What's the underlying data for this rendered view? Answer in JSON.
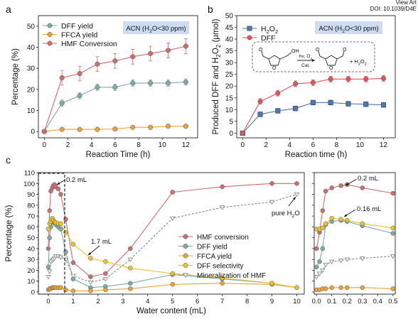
{
  "header": {
    "line1": "View Art",
    "line2": "DOI: 10.1039/D4E"
  },
  "chart_data": [
    {
      "panel": "a",
      "type": "line",
      "xlabel": "Reaction Time (h)",
      "ylabel": "Percentage (%)",
      "xlim": [
        -0.5,
        13
      ],
      "ylim": [
        -3,
        55
      ],
      "xticks": [
        0,
        2,
        4,
        6,
        8,
        10,
        12
      ],
      "yticks": [
        0,
        10,
        20,
        30,
        40,
        50
      ],
      "badge": "ACN (H2O<30 ppm)",
      "legend_position": "top-left",
      "x": [
        0,
        1.5,
        3,
        4.5,
        6,
        7.5,
        9,
        10.5,
        12
      ],
      "series": [
        {
          "name": "DFF yield",
          "color": "#7fa9a4",
          "marker": "circle",
          "values": [
            0,
            13.5,
            17,
            21,
            21,
            23,
            23,
            23,
            23.5
          ]
        },
        {
          "name": "FFCA yield",
          "color": "#e9a23b",
          "marker": "circle",
          "values": [
            0,
            1,
            1,
            1,
            1.2,
            2,
            2,
            2.5,
            2.5
          ]
        },
        {
          "name": "HMF Conversion",
          "color": "#cd6e6e",
          "marker": "circle",
          "values": [
            0,
            25.5,
            27.5,
            32,
            33.5,
            35.5,
            37,
            38.5,
            40.5
          ]
        }
      ]
    },
    {
      "panel": "b",
      "type": "line",
      "xlabel": "Reaction time (h)",
      "ylabel": "Produced DFF and H2O2 (μmol)",
      "xlim": [
        -0.5,
        13
      ],
      "ylim": [
        -2,
        50
      ],
      "xticks": [
        0,
        2,
        4,
        6,
        8,
        10,
        12
      ],
      "yticks": [
        0,
        5,
        10,
        15,
        20,
        25,
        30,
        35,
        40,
        45,
        50
      ],
      "badge": "ACN (H2O<30 ppm)",
      "legend_position": "top-left",
      "x": [
        0,
        1.5,
        3,
        4.5,
        6,
        7.5,
        9,
        10.5,
        12
      ],
      "series": [
        {
          "name": "H2O2",
          "color": "#4a78b0",
          "marker": "square",
          "values": [
            0,
            8,
            9.5,
            10.5,
            13,
            13,
            12.5,
            12.3,
            12
          ]
        },
        {
          "name": "DFF",
          "color": "#e0555a",
          "marker": "circle",
          "values": [
            0,
            13.5,
            17,
            21,
            21.5,
            23,
            23,
            23,
            23.3
          ]
        }
      ],
      "scheme": {
        "condition": "hν, O2",
        "catalyst": "Cat.",
        "byproduct": "+ H2O2"
      }
    },
    {
      "panel": "c",
      "type": "line",
      "xlabel": "Water content (mL)",
      "ylabel": "Percentage (%)",
      "ylim": [
        -2,
        110
      ],
      "yticks": [
        0,
        10,
        20,
        30,
        40,
        50,
        60,
        70,
        80,
        90,
        100,
        110
      ],
      "legend_position": "center-right",
      "annotations": [
        "0.2 mL",
        "1.7 mL",
        "pure H2O",
        "0.2 mL",
        "0.16 mL"
      ],
      "left": {
        "xlim": [
          -0.4,
          10.3
        ],
        "xticks": [
          0,
          1,
          2,
          3,
          4,
          5,
          6,
          7,
          8,
          9,
          10
        ],
        "x": [
          0,
          0.05,
          0.1,
          0.16,
          0.2,
          0.25,
          0.3,
          0.4,
          0.5,
          0.7,
          1.0,
          1.7,
          2.3,
          3.3,
          5,
          7,
          9,
          10
        ],
        "series": [
          {
            "name": "HMF conversion",
            "color": "#cd6e6e",
            "marker": "circle",
            "style": "solid",
            "values": [
              40,
              75,
              93,
              96,
              98,
              99,
              97,
              95,
              90,
              67,
              27,
              14,
              17,
              40,
              92,
              97,
              100,
              100
            ]
          },
          {
            "name": "DFF yield",
            "color": "#7fa9a4",
            "marker": "circle",
            "style": "solid",
            "values": [
              23,
              50,
              60,
              64,
              66,
              64,
              62,
              60,
              58,
              37,
              12,
              4,
              5,
              8,
              16,
              12,
              8,
              4
            ]
          },
          {
            "name": "FFCA yield",
            "color": "#e9a23b",
            "marker": "circle",
            "style": "solid",
            "values": [
              2,
              3,
              3,
              4,
              4,
              4,
              4,
              4,
              4,
              2,
              1,
              1,
              2,
              3,
              7,
              8,
              7,
              4
            ]
          },
          {
            "name": "DFF selectivity",
            "color": "#ebc235",
            "marker": "circle",
            "style": "solid",
            "values": [
              58,
              63,
              65,
              68,
              66,
              65,
              64,
              63,
              63,
              55,
              44,
              31,
              28,
              22,
              17,
              13,
              8,
              4
            ]
          },
          {
            "name": "Mineralization of HMF",
            "color": "#9a9a9a",
            "marker": "triangle-open",
            "style": "dashed",
            "values": [
              14,
              19,
              28,
              29,
              30,
              31,
              33,
              33,
              32,
              30,
              15,
              9,
              12,
              30,
              68,
              78,
              83,
              90
            ]
          }
        ]
      },
      "right": {
        "xlim": [
          -0.015,
          0.515
        ],
        "xticks": [
          0.0,
          0.1,
          0.2,
          0.3,
          0.4,
          0.5
        ],
        "xticklabels": [
          "0.0",
          "0.1",
          "0.2",
          "0.3",
          "0.4",
          "0.5"
        ],
        "x": [
          0,
          0.02,
          0.04,
          0.06,
          0.1,
          0.16,
          0.2,
          0.3,
          0.5
        ],
        "series": [
          {
            "name": "HMF conversion",
            "color": "#cd6e6e",
            "marker": "circle",
            "style": "solid",
            "values": [
              40,
              55,
              75,
              93,
              96,
              98,
              99,
              96,
              91
            ]
          },
          {
            "name": "DFF yield",
            "color": "#7fa9a4",
            "marker": "circle",
            "style": "solid",
            "values": [
              23,
              28,
              40,
              62,
              65,
              66,
              65,
              61,
              54
            ]
          },
          {
            "name": "FFCA yield",
            "color": "#e9a23b",
            "marker": "circle",
            "style": "solid",
            "values": [
              2,
              2,
              3,
              3,
              4,
              4,
              4,
              4,
              3
            ]
          },
          {
            "name": "DFF selectivity",
            "color": "#ebc235",
            "marker": "circle",
            "style": "solid",
            "values": [
              58,
              58,
              59,
              63,
              68,
              67,
              66,
              63,
              59
            ]
          },
          {
            "name": "Mineralization of HMF",
            "color": "#9a9a9a",
            "marker": "triangle-open",
            "style": "dashed",
            "values": [
              14,
              17,
              20,
              25,
              28,
              29,
              30,
              31,
              33
            ]
          }
        ]
      }
    }
  ]
}
